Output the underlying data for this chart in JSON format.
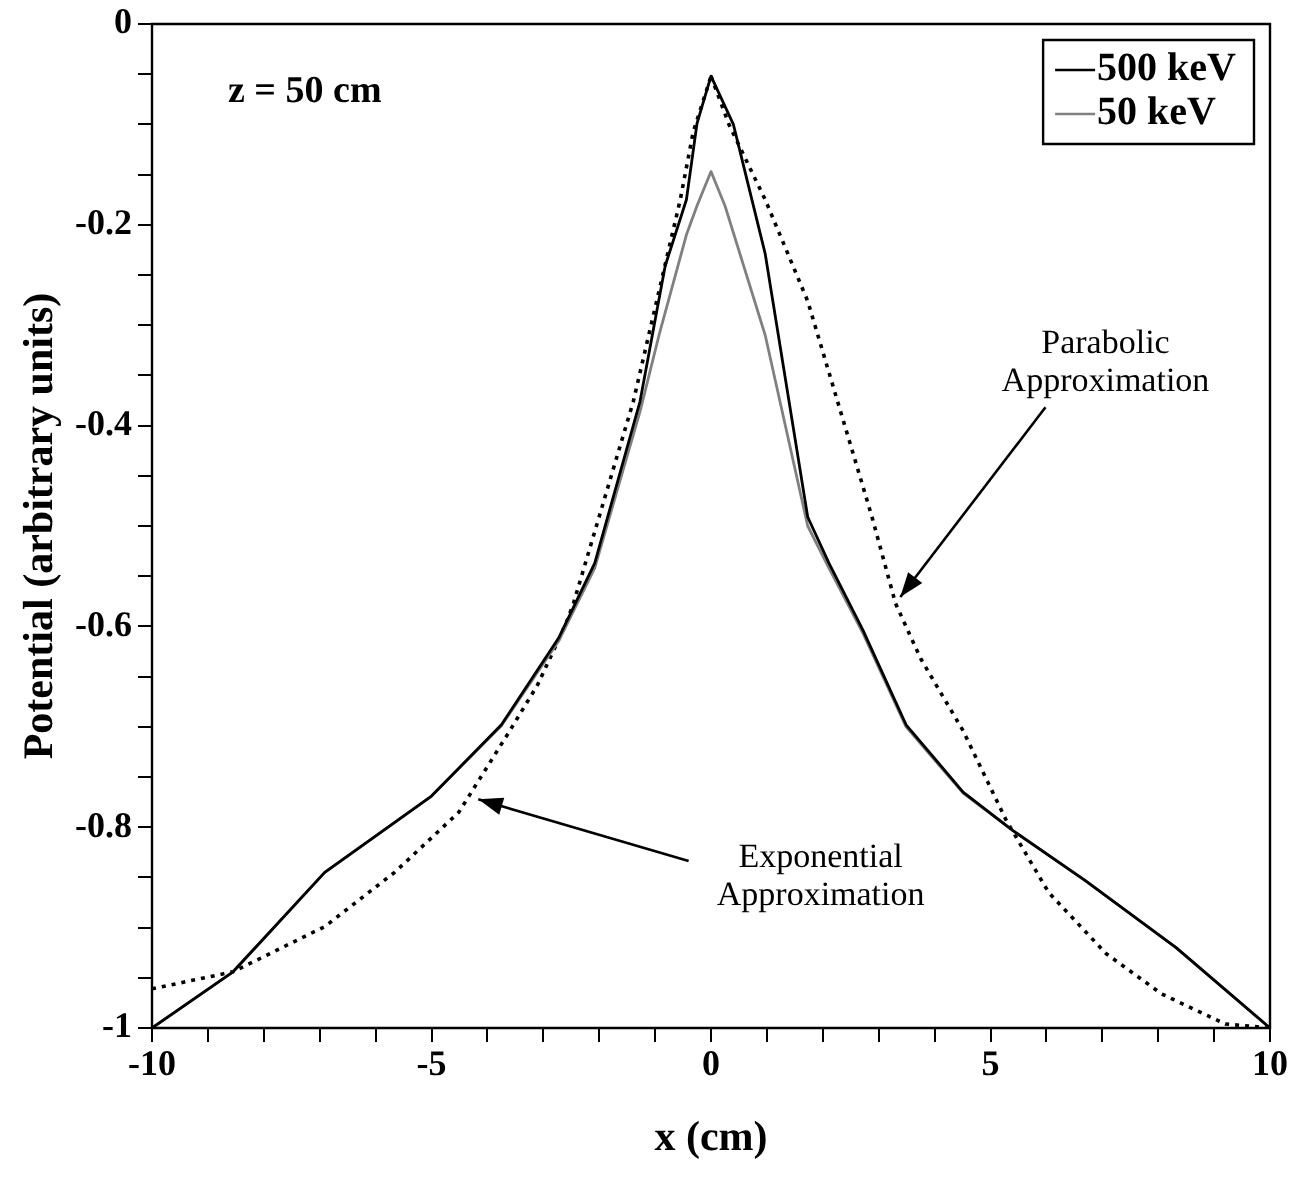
{
  "chart_data": {
    "type": "line",
    "xlabel": "x (cm)",
    "ylabel": "Potential (arbitrary units)",
    "xlim": [
      -10,
      10
    ],
    "ylim": [
      -1,
      0
    ],
    "xticks": [
      -10,
      {
        "value": -9,
        "label": null
      },
      {
        "value": -8,
        "label": null
      },
      {
        "value": -7,
        "label": null
      },
      {
        "value": -6,
        "label": null
      },
      -5,
      {
        "value": -4,
        "label": null
      },
      {
        "value": -3,
        "label": null
      },
      {
        "value": -2,
        "label": null
      },
      {
        "value": -1,
        "label": null
      },
      0,
      {
        "value": 1,
        "label": null
      },
      {
        "value": 2,
        "label": null
      },
      {
        "value": 3,
        "label": null
      },
      {
        "value": 4,
        "label": null
      },
      5,
      {
        "value": 6,
        "label": null
      },
      {
        "value": 7,
        "label": null
      },
      {
        "value": 8,
        "label": null
      },
      {
        "value": 9,
        "label": null
      },
      10
    ],
    "yticks": [
      {
        "value": -1,
        "label": "-1"
      },
      {
        "value": -0.95,
        "label": null
      },
      {
        "value": -0.9,
        "label": null
      },
      {
        "value": -0.85,
        "label": null
      },
      -0.8,
      {
        "value": -0.75,
        "label": null
      },
      {
        "value": -0.7,
        "label": null
      },
      {
        "value": -0.65,
        "label": null
      },
      -0.6,
      {
        "value": -0.55,
        "label": null
      },
      {
        "value": -0.5,
        "label": null
      },
      {
        "value": -0.45,
        "label": null
      },
      -0.4,
      {
        "value": -0.35,
        "label": null
      },
      {
        "value": -0.3,
        "label": null
      },
      {
        "value": -0.25,
        "label": null
      },
      -0.2,
      {
        "value": -0.15,
        "label": null
      },
      {
        "value": -0.1,
        "label": null
      },
      {
        "value": -0.05,
        "label": null
      },
      0
    ],
    "legend": "top right",
    "marker": "none",
    "grid": false,
    "series": [
      {
        "name": "500 keV",
        "color": "#000000",
        "line_style": "solid",
        "x": [
          -10,
          -8.55,
          -6.91,
          -5.0,
          -3.75,
          -2.72,
          -2.08,
          -1.27,
          -0.82,
          -0.44,
          -0.25,
          0,
          0.4,
          0.97,
          1.73,
          2.11,
          2.72,
          3.49,
          4.51,
          5.39,
          6.69,
          8.32,
          10
        ],
        "values": [
          -1,
          -0.944,
          -0.845,
          -0.769,
          -0.698,
          -0.611,
          -0.537,
          -0.376,
          -0.241,
          -0.175,
          -0.099,
          -0.052,
          -0.1,
          -0.229,
          -0.491,
          -0.537,
          -0.604,
          -0.698,
          -0.765,
          -0.803,
          -0.853,
          -0.92,
          -1
        ]
      },
      {
        "name": "50 keV",
        "color": "#808080",
        "line_style": "solid",
        "x": [
          -10,
          -8.55,
          -6.91,
          -5.0,
          -3.75,
          -2.72,
          -2.08,
          -1.27,
          -0.93,
          -0.44,
          -0.25,
          0,
          0.25,
          0.97,
          1.73,
          2.11,
          2.72,
          3.49,
          4.51,
          5.39,
          6.69,
          8.32,
          10
        ],
        "values": [
          -1,
          -0.944,
          -0.845,
          -0.769,
          -0.699,
          -0.614,
          -0.542,
          -0.386,
          -0.31,
          -0.21,
          -0.181,
          -0.147,
          -0.181,
          -0.31,
          -0.5,
          -0.542,
          -0.607,
          -0.7,
          -0.766,
          -0.803,
          -0.853,
          -0.92,
          -1
        ]
      },
      {
        "color": "#000000",
        "line_style": "dotted",
        "x": [
          -10,
          -8.55,
          -6.91,
          -5.66,
          -4.51,
          -3.6,
          -3.1,
          -2.6,
          -2.46,
          -1.39,
          -0.55,
          -0.32,
          0
        ],
        "values": [
          -0.961,
          -0.944,
          -0.899,
          -0.845,
          -0.785,
          -0.704,
          -0.658,
          -0.598,
          -0.577,
          -0.376,
          -0.175,
          -0.108,
          -0.052
        ]
      },
      {
        "color": "#000000",
        "line_style": "dotted",
        "x": [
          0,
          0.32,
          0.97,
          1.73,
          2.88,
          3.3,
          3.75,
          4.51,
          5.28,
          6.04,
          7.07,
          8.06,
          9.2,
          10
        ],
        "values": [
          -0.052,
          -0.1,
          -0.175,
          -0.276,
          -0.491,
          -0.577,
          -0.632,
          -0.704,
          -0.793,
          -0.865,
          -0.926,
          -0.966,
          -0.996,
          -1
        ]
      }
    ],
    "annotations": [
      "z = 50 cm",
      {
        "text": "Parabolic Approximation",
        "x": 3.3,
        "y": -0.577
      },
      {
        "text": "Exponential Approximation",
        "x": -4.3,
        "y": -0.77
      }
    ]
  }
}
